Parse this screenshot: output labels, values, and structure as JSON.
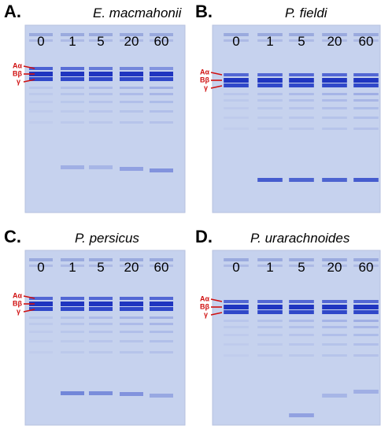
{
  "panels": [
    {
      "letter": "A.",
      "species": "E. macmahonii",
      "lanes": [
        "0",
        "1",
        "5",
        "20",
        "60"
      ],
      "band_labels": [
        "Aα",
        "Bβ",
        "γ"
      ]
    },
    {
      "letter": "B.",
      "species": "P. fieldi",
      "lanes": [
        "0",
        "1",
        "5",
        "20",
        "60"
      ],
      "band_labels": [
        "Aα",
        "Bβ",
        "γ"
      ]
    },
    {
      "letter": "C.",
      "species": "P. persicus",
      "lanes": [
        "0",
        "1",
        "5",
        "20",
        "60"
      ],
      "band_labels": [
        "Aα",
        "Bβ",
        "γ"
      ]
    },
    {
      "letter": "D.",
      "species": "P. urarachnoides",
      "lanes": [
        "0",
        "1",
        "5",
        "20",
        "60"
      ],
      "band_labels": [
        "Aα",
        "Bβ",
        "γ"
      ]
    }
  ]
}
